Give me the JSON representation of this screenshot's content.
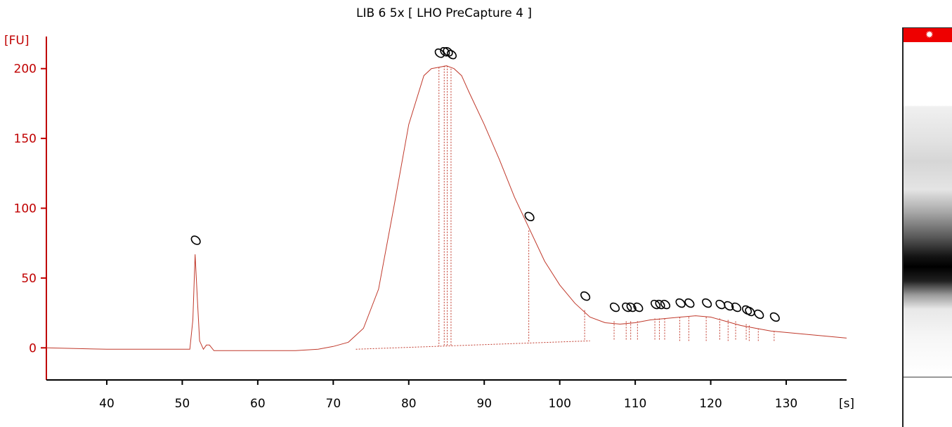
{
  "chart_data": {
    "type": "line",
    "title": "LIB 6 5x  [ LHO PreCapture 4 ]",
    "ylabel": "[FU]",
    "xlabel": "[s]",
    "xlim": [
      32,
      138
    ],
    "ylim": [
      -23,
      223
    ],
    "x_ticks": [
      40,
      50,
      60,
      70,
      80,
      90,
      100,
      110,
      120,
      130
    ],
    "y_ticks": [
      0,
      50,
      100,
      150,
      200
    ],
    "series": [
      {
        "x": [
          32,
          40,
          45,
          50,
          51.0,
          51.4,
          51.7,
          52.0,
          52.3,
          52.8,
          53.2,
          53.6,
          54.2,
          56,
          60,
          65,
          68,
          70,
          72,
          74,
          76,
          78,
          80,
          82,
          83,
          84,
          85,
          86,
          87,
          88,
          90,
          92,
          94,
          96,
          98,
          100,
          102,
          104,
          106,
          108,
          110,
          112,
          114,
          116,
          118,
          120,
          122,
          124,
          126,
          128,
          130,
          132,
          134,
          136,
          138
        ],
        "y": [
          0,
          -1,
          -1,
          -1,
          -1,
          20,
          67,
          35,
          5,
          -1,
          2,
          2,
          -2,
          -2,
          -2,
          -2,
          -1,
          1,
          4,
          14,
          42,
          100,
          160,
          195,
          200,
          201,
          202,
          200,
          195,
          183,
          160,
          135,
          108,
          85,
          62,
          45,
          32,
          22,
          18,
          17,
          18,
          20,
          21,
          22,
          23,
          22,
          19,
          16,
          14,
          12,
          11,
          10,
          9,
          8,
          7
        ]
      }
    ],
    "peak_markers": [
      {
        "x": 51.7,
        "y": 67
      },
      {
        "x": 84.0,
        "y": 201
      },
      {
        "x": 84.7,
        "y": 202
      },
      {
        "x": 85.1,
        "y": 202
      },
      {
        "x": 85.6,
        "y": 200
      },
      {
        "x": 95.9,
        "y": 84
      },
      {
        "x": 103.3,
        "y": 27
      },
      {
        "x": 107.2,
        "y": 19
      },
      {
        "x": 108.8,
        "y": 19
      },
      {
        "x": 109.4,
        "y": 19
      },
      {
        "x": 110.3,
        "y": 19
      },
      {
        "x": 112.6,
        "y": 21
      },
      {
        "x": 113.2,
        "y": 21
      },
      {
        "x": 113.9,
        "y": 21
      },
      {
        "x": 115.9,
        "y": 22
      },
      {
        "x": 117.1,
        "y": 22
      },
      {
        "x": 119.4,
        "y": 22
      },
      {
        "x": 121.2,
        "y": 21
      },
      {
        "x": 122.3,
        "y": 20
      },
      {
        "x": 123.3,
        "y": 19
      },
      {
        "x": 124.7,
        "y": 17
      },
      {
        "x": 125.1,
        "y": 16
      },
      {
        "x": 126.3,
        "y": 14
      },
      {
        "x": 128.4,
        "y": 12
      }
    ],
    "grid": false,
    "colors": {
      "trace": "#c0392b",
      "axis": "#c00000",
      "markers": "#000000",
      "gel_marker": "#ee0000"
    }
  }
}
